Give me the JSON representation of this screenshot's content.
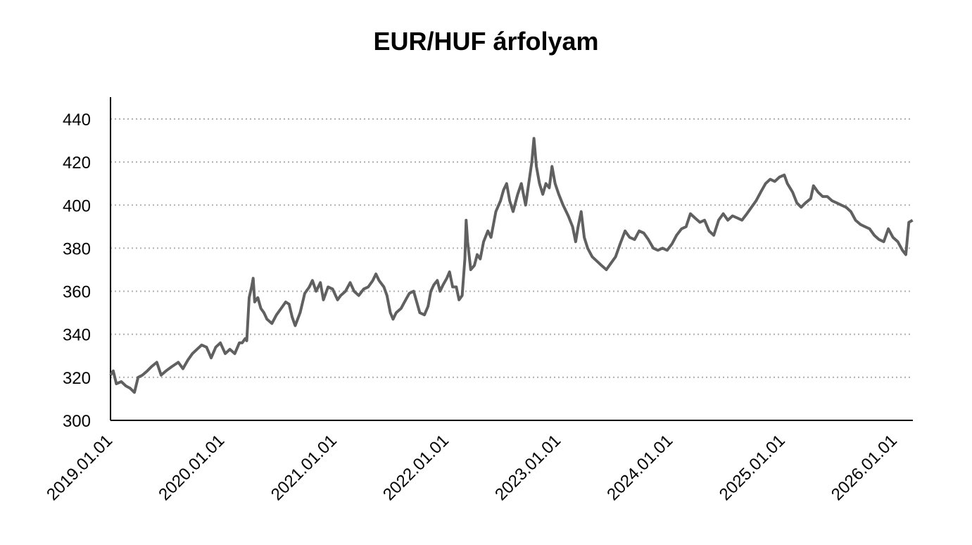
{
  "chart_data": {
    "type": "line",
    "title": "EUR/HUF árfolyam",
    "xlabel": "",
    "ylabel": "",
    "ylim": [
      300,
      440
    ],
    "yticks": [
      300,
      320,
      340,
      360,
      380,
      400,
      420,
      440
    ],
    "xticks": [
      "2019.01.01",
      "2020.01.01",
      "2021.01.01",
      "2022.01.01",
      "2023.01.01",
      "2024.01.01",
      "2025.01.01",
      "2026.01.01"
    ],
    "xlim": [
      "2019-01-01",
      "2026-02-28"
    ],
    "grid": "horizontal-dotted",
    "legend": "none",
    "line_color": "#606060",
    "series": [
      {
        "values": [
          [
            "2019-01-01",
            321
          ],
          [
            "2019-01-10",
            323
          ],
          [
            "2019-01-20",
            317
          ],
          [
            "2019-02-05",
            318
          ],
          [
            "2019-02-20",
            316
          ],
          [
            "2019-03-05",
            315
          ],
          [
            "2019-03-20",
            313
          ],
          [
            "2019-04-01",
            320
          ],
          [
            "2019-04-15",
            321
          ],
          [
            "2019-05-01",
            323
          ],
          [
            "2019-05-15",
            325
          ],
          [
            "2019-06-01",
            327
          ],
          [
            "2019-06-15",
            321
          ],
          [
            "2019-07-01",
            323
          ],
          [
            "2019-07-20",
            325
          ],
          [
            "2019-08-10",
            327
          ],
          [
            "2019-08-25",
            324
          ],
          [
            "2019-09-10",
            328
          ],
          [
            "2019-09-25",
            331
          ],
          [
            "2019-10-10",
            333
          ],
          [
            "2019-10-25",
            335
          ],
          [
            "2019-11-10",
            334
          ],
          [
            "2019-11-25",
            329
          ],
          [
            "2019-12-10",
            334
          ],
          [
            "2019-12-25",
            336
          ],
          [
            "2020-01-10",
            331
          ],
          [
            "2020-01-25",
            333
          ],
          [
            "2020-02-10",
            331
          ],
          [
            "2020-02-25",
            336
          ],
          [
            "2020-03-05",
            336
          ],
          [
            "2020-03-15",
            338
          ],
          [
            "2020-03-20",
            337
          ],
          [
            "2020-03-28",
            357
          ],
          [
            "2020-04-05",
            362
          ],
          [
            "2020-04-10",
            366
          ],
          [
            "2020-04-15",
            355
          ],
          [
            "2020-04-25",
            357
          ],
          [
            "2020-05-05",
            352
          ],
          [
            "2020-05-15",
            350
          ],
          [
            "2020-05-25",
            347
          ],
          [
            "2020-06-10",
            345
          ],
          [
            "2020-06-25",
            349
          ],
          [
            "2020-07-10",
            352
          ],
          [
            "2020-07-25",
            355
          ],
          [
            "2020-08-05",
            354
          ],
          [
            "2020-08-15",
            348
          ],
          [
            "2020-08-25",
            344
          ],
          [
            "2020-09-10",
            350
          ],
          [
            "2020-09-25",
            359
          ],
          [
            "2020-10-10",
            362
          ],
          [
            "2020-10-20",
            365
          ],
          [
            "2020-11-01",
            360
          ],
          [
            "2020-11-15",
            364
          ],
          [
            "2020-11-25",
            356
          ],
          [
            "2020-12-10",
            362
          ],
          [
            "2020-12-25",
            361
          ],
          [
            "2021-01-10",
            356
          ],
          [
            "2021-01-20",
            358
          ],
          [
            "2021-02-05",
            360
          ],
          [
            "2021-02-20",
            364
          ],
          [
            "2021-03-05",
            360
          ],
          [
            "2021-03-20",
            358
          ],
          [
            "2021-04-05",
            361
          ],
          [
            "2021-04-20",
            362
          ],
          [
            "2021-05-05",
            365
          ],
          [
            "2021-05-15",
            368
          ],
          [
            "2021-05-25",
            365
          ],
          [
            "2021-06-10",
            362
          ],
          [
            "2021-06-20",
            358
          ],
          [
            "2021-07-01",
            350
          ],
          [
            "2021-07-10",
            347
          ],
          [
            "2021-07-20",
            350
          ],
          [
            "2021-08-05",
            352
          ],
          [
            "2021-08-20",
            356
          ],
          [
            "2021-09-01",
            359
          ],
          [
            "2021-09-15",
            360
          ],
          [
            "2021-09-25",
            355
          ],
          [
            "2021-10-05",
            350
          ],
          [
            "2021-10-20",
            349
          ],
          [
            "2021-11-01",
            353
          ],
          [
            "2021-11-10",
            360
          ],
          [
            "2021-11-20",
            363
          ],
          [
            "2021-12-01",
            365
          ],
          [
            "2021-12-10",
            360
          ],
          [
            "2021-12-20",
            363
          ],
          [
            "2022-01-01",
            366
          ],
          [
            "2022-01-10",
            369
          ],
          [
            "2022-01-20",
            362
          ],
          [
            "2022-02-01",
            362
          ],
          [
            "2022-02-10",
            356
          ],
          [
            "2022-02-20",
            358
          ],
          [
            "2022-03-01",
            375
          ],
          [
            "2022-03-05",
            393
          ],
          [
            "2022-03-10",
            383
          ],
          [
            "2022-03-20",
            370
          ],
          [
            "2022-04-01",
            372
          ],
          [
            "2022-04-10",
            377
          ],
          [
            "2022-04-20",
            375
          ],
          [
            "2022-05-01",
            383
          ],
          [
            "2022-05-15",
            388
          ],
          [
            "2022-05-25",
            385
          ],
          [
            "2022-06-10",
            397
          ],
          [
            "2022-06-25",
            402
          ],
          [
            "2022-07-05",
            407
          ],
          [
            "2022-07-15",
            410
          ],
          [
            "2022-07-25",
            402
          ],
          [
            "2022-08-05",
            397
          ],
          [
            "2022-08-20",
            405
          ],
          [
            "2022-09-01",
            410
          ],
          [
            "2022-09-15",
            400
          ],
          [
            "2022-09-25",
            410
          ],
          [
            "2022-10-05",
            420
          ],
          [
            "2022-10-12",
            431
          ],
          [
            "2022-10-20",
            418
          ],
          [
            "2022-10-30",
            410
          ],
          [
            "2022-11-10",
            405
          ],
          [
            "2022-11-20",
            410
          ],
          [
            "2022-12-01",
            408
          ],
          [
            "2022-12-10",
            418
          ],
          [
            "2022-12-20",
            410
          ],
          [
            "2023-01-01",
            405
          ],
          [
            "2023-01-15",
            400
          ],
          [
            "2023-02-01",
            395
          ],
          [
            "2023-02-15",
            390
          ],
          [
            "2023-02-25",
            383
          ],
          [
            "2023-03-05",
            390
          ],
          [
            "2023-03-15",
            397
          ],
          [
            "2023-03-25",
            385
          ],
          [
            "2023-04-05",
            380
          ],
          [
            "2023-04-20",
            376
          ],
          [
            "2023-05-05",
            374
          ],
          [
            "2023-05-20",
            372
          ],
          [
            "2023-06-05",
            370
          ],
          [
            "2023-06-20",
            373
          ],
          [
            "2023-07-05",
            376
          ],
          [
            "2023-07-20",
            382
          ],
          [
            "2023-08-05",
            388
          ],
          [
            "2023-08-20",
            385
          ],
          [
            "2023-09-05",
            384
          ],
          [
            "2023-09-20",
            388
          ],
          [
            "2023-10-05",
            387
          ],
          [
            "2023-10-20",
            384
          ],
          [
            "2023-11-05",
            380
          ],
          [
            "2023-11-20",
            379
          ],
          [
            "2023-12-05",
            380
          ],
          [
            "2023-12-20",
            379
          ],
          [
            "2024-01-05",
            382
          ],
          [
            "2024-01-20",
            386
          ],
          [
            "2024-02-05",
            389
          ],
          [
            "2024-02-20",
            390
          ],
          [
            "2024-03-05",
            396
          ],
          [
            "2024-03-20",
            394
          ],
          [
            "2024-04-05",
            392
          ],
          [
            "2024-04-20",
            393
          ],
          [
            "2024-05-05",
            388
          ],
          [
            "2024-05-20",
            386
          ],
          [
            "2024-06-05",
            393
          ],
          [
            "2024-06-20",
            396
          ],
          [
            "2024-07-05",
            393
          ],
          [
            "2024-07-20",
            395
          ],
          [
            "2024-08-05",
            394
          ],
          [
            "2024-08-20",
            393
          ],
          [
            "2024-09-05",
            396
          ],
          [
            "2024-09-20",
            399
          ],
          [
            "2024-10-05",
            402
          ],
          [
            "2024-10-20",
            406
          ],
          [
            "2024-11-05",
            410
          ],
          [
            "2024-11-20",
            412
          ],
          [
            "2024-12-05",
            411
          ],
          [
            "2024-12-20",
            413
          ],
          [
            "2025-01-05",
            414
          ],
          [
            "2025-01-15",
            410
          ],
          [
            "2025-02-01",
            406
          ],
          [
            "2025-02-15",
            401
          ],
          [
            "2025-03-01",
            399
          ],
          [
            "2025-03-15",
            401
          ],
          [
            "2025-04-01",
            403
          ],
          [
            "2025-04-10",
            409
          ],
          [
            "2025-04-25",
            406
          ],
          [
            "2025-05-10",
            404
          ],
          [
            "2025-05-25",
            404
          ],
          [
            "2025-06-10",
            402
          ],
          [
            "2025-06-25",
            401
          ],
          [
            "2025-07-10",
            400
          ],
          [
            "2025-07-25",
            399
          ],
          [
            "2025-08-10",
            397
          ],
          [
            "2025-08-25",
            393
          ],
          [
            "2025-09-10",
            391
          ],
          [
            "2025-09-25",
            390
          ],
          [
            "2025-10-10",
            389
          ],
          [
            "2025-10-25",
            386
          ],
          [
            "2025-11-10",
            384
          ],
          [
            "2025-11-25",
            383
          ],
          [
            "2025-12-10",
            389
          ],
          [
            "2025-12-25",
            385
          ],
          [
            "2026-01-10",
            383
          ],
          [
            "2026-01-25",
            379
          ],
          [
            "2026-02-05",
            377
          ],
          [
            "2026-02-15",
            392
          ],
          [
            "2026-02-27",
            393
          ]
        ]
      }
    ]
  }
}
